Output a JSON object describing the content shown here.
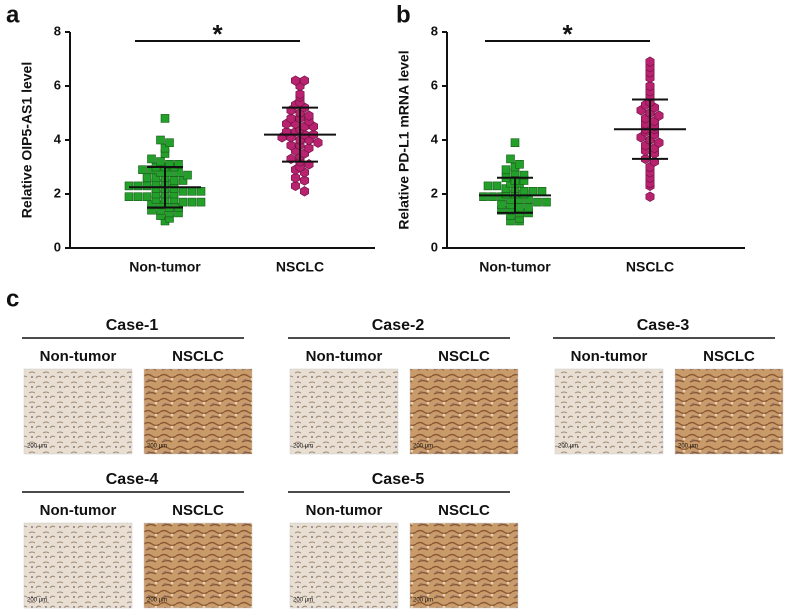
{
  "panel_labels": [
    "a",
    "b",
    "c"
  ],
  "chart_data": [
    {
      "type": "strip",
      "ylabel": "Relative OIP5-AS1 level",
      "categories": [
        "Non-tumor",
        "NSCLC"
      ],
      "ylim": [
        0,
        8
      ],
      "yticks": [
        0,
        2,
        4,
        6,
        8
      ],
      "annotation": "*",
      "groups": [
        {
          "color": "#22a02a",
          "marker": "square",
          "mean": 2.25,
          "sd": 0.75,
          "values": [
            4.8,
            4.0,
            3.9,
            3.7,
            3.5,
            3.3,
            3.2,
            3.1,
            3.1,
            3.0,
            3.0,
            3.0,
            2.9,
            2.9,
            2.8,
            2.8,
            2.8,
            2.7,
            2.6,
            2.6,
            2.6,
            2.5,
            2.5,
            2.4,
            2.4,
            2.4,
            2.3,
            2.3,
            2.3,
            2.2,
            2.2,
            2.2,
            2.1,
            2.1,
            2.1,
            2.0,
            2.0,
            2.0,
            1.9,
            1.9,
            1.9,
            1.8,
            1.8,
            1.8,
            1.7,
            1.7,
            1.7,
            1.6,
            1.6,
            1.5,
            1.5,
            1.4,
            1.4,
            1.3,
            1.3,
            1.2,
            1.1,
            1.0
          ]
        },
        {
          "color": "#b8226e",
          "marker": "hexagon",
          "mean": 4.2,
          "sd": 1.0,
          "values": [
            6.2,
            6.2,
            6.0,
            5.7,
            5.6,
            5.4,
            5.3,
            5.2,
            5.1,
            5.0,
            4.9,
            4.8,
            4.8,
            4.7,
            4.6,
            4.6,
            4.5,
            4.5,
            4.4,
            4.3,
            4.3,
            4.2,
            4.2,
            4.1,
            4.1,
            4.0,
            4.0,
            3.9,
            3.8,
            3.8,
            3.7,
            3.6,
            3.5,
            3.4,
            3.3,
            3.2,
            3.1,
            3.0,
            2.9,
            2.8,
            2.6,
            2.5,
            2.3,
            2.1
          ]
        }
      ]
    },
    {
      "type": "strip",
      "ylabel": "Relative PD-L1 mRNA level",
      "categories": [
        "Non-tumor",
        "NSCLC"
      ],
      "ylim": [
        0,
        8
      ],
      "yticks": [
        0,
        2,
        4,
        6,
        8
      ],
      "annotation": "*",
      "groups": [
        {
          "color": "#22a02a",
          "marker": "square",
          "mean": 1.95,
          "sd": 0.65,
          "values": [
            3.9,
            3.3,
            3.1,
            3.0,
            2.9,
            2.8,
            2.7,
            2.6,
            2.5,
            2.5,
            2.4,
            2.4,
            2.3,
            2.3,
            2.2,
            2.2,
            2.1,
            2.1,
            2.1,
            2.0,
            2.0,
            2.0,
            1.9,
            1.9,
            1.9,
            1.8,
            1.8,
            1.8,
            1.7,
            1.7,
            1.6,
            1.6,
            1.5,
            1.5,
            1.4,
            1.4,
            1.3,
            1.3,
            1.2,
            1.1,
            1.0,
            1.0
          ]
        },
        {
          "color": "#b8226e",
          "marker": "hexagon",
          "mean": 4.4,
          "sd": 1.1,
          "values": [
            6.9,
            6.7,
            6.5,
            6.3,
            6.0,
            5.8,
            5.6,
            5.4,
            5.3,
            5.2,
            5.1,
            5.0,
            4.9,
            4.8,
            4.7,
            4.6,
            4.5,
            4.4,
            4.4,
            4.3,
            4.2,
            4.1,
            4.0,
            3.9,
            3.8,
            3.7,
            3.6,
            3.5,
            3.3,
            3.2,
            3.0,
            2.8,
            2.6,
            2.4,
            2.3,
            1.9
          ]
        }
      ]
    }
  ],
  "cases": [
    {
      "title": "Case-1",
      "columns": [
        "Non-tumor",
        "NSCLC"
      ],
      "scale_labels": [
        "200 μm",
        "200 μm"
      ]
    },
    {
      "title": "Case-2",
      "columns": [
        "Non-tumor",
        "NSCLC"
      ],
      "scale_labels": [
        "200 μm",
        "200 μm"
      ]
    },
    {
      "title": "Case-3",
      "columns": [
        "Non-tumor",
        "NSCLC"
      ],
      "scale_labels": [
        "200 μm",
        "200 μm"
      ]
    },
    {
      "title": "Case-4",
      "columns": [
        "Non-tumor",
        "NSCLC"
      ],
      "scale_labels": [
        "200 μm",
        "200 μm"
      ]
    },
    {
      "title": "Case-5",
      "columns": [
        "Non-tumor",
        "NSCLC"
      ],
      "scale_labels": [
        "200 μm",
        "200 μm"
      ]
    }
  ]
}
